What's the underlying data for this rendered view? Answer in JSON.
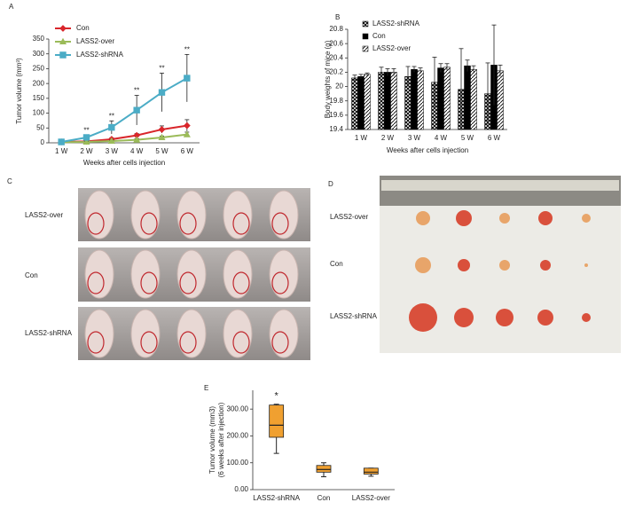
{
  "chart_data": [
    {
      "type": "line",
      "panel": "A",
      "ylabel": "Tumor volume (mm³)",
      "xlabel": "Weeks after cells injection",
      "categories": [
        "1 W",
        "2 W",
        "3 W",
        "4 W",
        "5 W",
        "6 W"
      ],
      "ylim": [
        0,
        350
      ],
      "yticks": [
        0,
        50,
        100,
        150,
        200,
        250,
        300,
        350
      ],
      "series": [
        {
          "name": "Con",
          "color": "#d9262b",
          "marker": "diamond",
          "values": [
            3,
            5,
            12,
            25,
            45,
            58
          ],
          "errors": [
            1,
            3,
            5,
            6,
            12,
            20
          ]
        },
        {
          "name": "LASS2-over",
          "color": "#9bbb59",
          "marker": "triangle",
          "values": [
            2,
            3,
            6,
            10,
            18,
            28
          ],
          "errors": [
            1,
            2,
            3,
            4,
            5,
            8
          ]
        },
        {
          "name": "LASS2-shRNA",
          "color": "#4bacc6",
          "marker": "square",
          "values": [
            3,
            18,
            52,
            110,
            170,
            218
          ],
          "errors": [
            2,
            8,
            22,
            50,
            65,
            80
          ]
        }
      ],
      "annotations": [
        null,
        "**",
        "**",
        "**",
        "**",
        "**"
      ]
    },
    {
      "type": "bar",
      "panel": "B",
      "ylabel": "Body weights of mice (g)",
      "xlabel": "Weeks after cells injection",
      "categories": [
        "1 W",
        "2 W",
        "3 W",
        "4 W",
        "5 W",
        "6 W"
      ],
      "ylim": [
        19.4,
        20.8
      ],
      "yticks": [
        19.4,
        19.6,
        19.8,
        20,
        20.2,
        20.4,
        20.6,
        20.8
      ],
      "series": [
        {
          "name": "LASS2-shRNA",
          "color": "#000000",
          "pattern": "cross",
          "values": [
            20.12,
            20.2,
            20.14,
            20.06,
            19.96,
            19.9
          ],
          "errors": [
            0.04,
            0.07,
            0.14,
            0.35,
            0.57,
            0.43
          ]
        },
        {
          "name": "Con",
          "color": "#000000",
          "pattern": "solid",
          "values": [
            20.14,
            20.2,
            20.24,
            20.26,
            20.29,
            20.3
          ],
          "errors": [
            0.03,
            0.05,
            0.04,
            0.06,
            0.08,
            0.56
          ]
        },
        {
          "name": "LASS2-over",
          "color": "#000000",
          "pattern": "diagonal",
          "values": [
            20.17,
            20.2,
            20.22,
            20.27,
            20.24,
            20.22
          ],
          "errors": [
            0.02,
            0.05,
            0.04,
            0.05,
            0.05,
            0.08
          ]
        }
      ]
    },
    {
      "type": "box",
      "panel": "E",
      "ylabel": [
        "Tumor volume (mm3)",
        "(6 weeks after injection)"
      ],
      "categories": [
        "LASS2-shRNA",
        "Con",
        "LASS2-over"
      ],
      "color": "#f0a030",
      "ylim": [
        0,
        370
      ],
      "yticks": [
        {
          "value": 0,
          "label": "0.00"
        },
        {
          "value": 100,
          "label": "100.00"
        },
        {
          "value": 200,
          "label": "200.00"
        },
        {
          "value": 300,
          "label": "300.00"
        }
      ],
      "boxes": [
        {
          "min": 135,
          "q1": 195,
          "median": 240,
          "q3": 315,
          "max": 318
        },
        {
          "min": 48,
          "q1": 65,
          "median": 75,
          "q3": 90,
          "max": 100
        },
        {
          "min": 50,
          "q1": 58,
          "median": 65,
          "q3": 80,
          "max": 80
        }
      ],
      "annotations": [
        "*",
        null,
        null
      ]
    }
  ],
  "photo_panels": [
    {
      "panel": "C",
      "rows": [
        "LASS2-over",
        "Con",
        "LASS2-shRNA"
      ]
    },
    {
      "panel": "D",
      "rows": [
        "LASS2-over",
        "Con",
        "LASS2-shRNA"
      ]
    }
  ]
}
